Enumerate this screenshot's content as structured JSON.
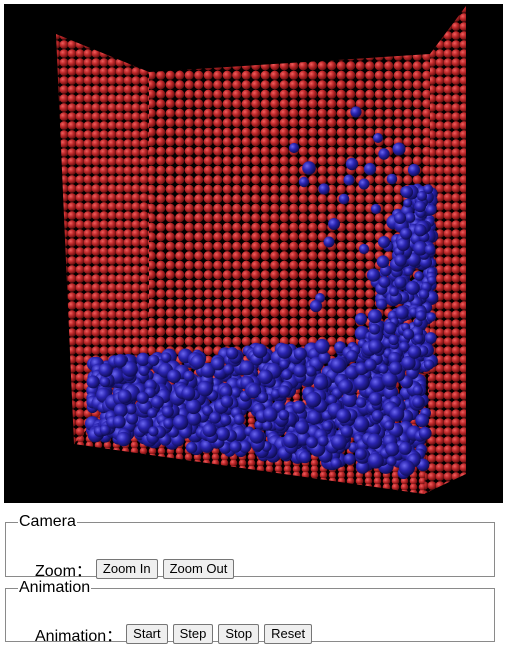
{
  "camera": {
    "legend": "Camera",
    "zoom_label": "Zoom：",
    "zoom_in_label": "Zoom In",
    "zoom_out_label": "Zoom Out"
  },
  "animation": {
    "legend": "Animation",
    "animation_label": "Animation：",
    "start_label": "Start",
    "step_label": "Step",
    "stop_label": "Stop",
    "reset_label": "Reset"
  },
  "scene": {
    "background_color": "#000000",
    "wall_particle_color": "#c0282a",
    "fluid_particle_color": "#2a24b0"
  }
}
